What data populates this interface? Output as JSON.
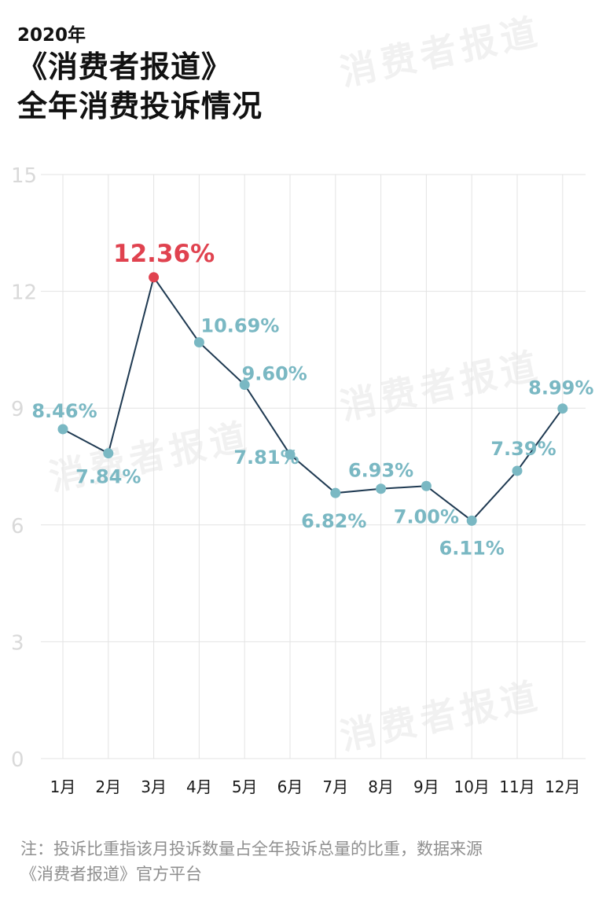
{
  "header": {
    "year": "2020年",
    "title_line1": "《消费者报道》",
    "title_line2": "全年消费投诉情况"
  },
  "watermark_text": "消费者报道",
  "footnote": {
    "line1": "注：投诉比重指该月投诉数量占全年投诉总量的比重，数据来源",
    "line2": "《消费者报道》官方平台"
  },
  "chart_data": {
    "type": "line",
    "title": "全年消费投诉情况",
    "categories": [
      "1月",
      "2月",
      "3月",
      "4月",
      "5月",
      "6月",
      "7月",
      "8月",
      "9月",
      "10月",
      "11月",
      "12月"
    ],
    "series": [
      {
        "values": [
          8.46,
          7.84,
          12.36,
          10.69,
          9.6,
          7.81,
          6.82,
          6.93,
          7.0,
          6.11,
          7.39,
          8.99
        ],
        "labels": [
          "8.46%",
          "7.84%",
          "12.36%",
          "10.69%",
          "9.60%",
          "7.81%",
          "6.82%",
          "6.93%",
          "7.00%",
          "6.11%",
          "7.39%",
          "8.99%"
        ]
      }
    ],
    "highlight_index": 2,
    "ylim": [
      0,
      15
    ],
    "yticks": [
      0,
      3,
      6,
      9,
      12,
      15
    ],
    "ytick_labels": [
      "0",
      "3",
      "6",
      "9",
      "12",
      "15"
    ],
    "grid": true,
    "colors": {
      "line": "#1f3a52",
      "marker": "#7ab8c3",
      "label": "#7ab8c3",
      "highlight": "#e0424f",
      "gridline": "#e3e3e3",
      "ytick": "#d9d9d9",
      "xtick": "#1a1a1a"
    }
  }
}
